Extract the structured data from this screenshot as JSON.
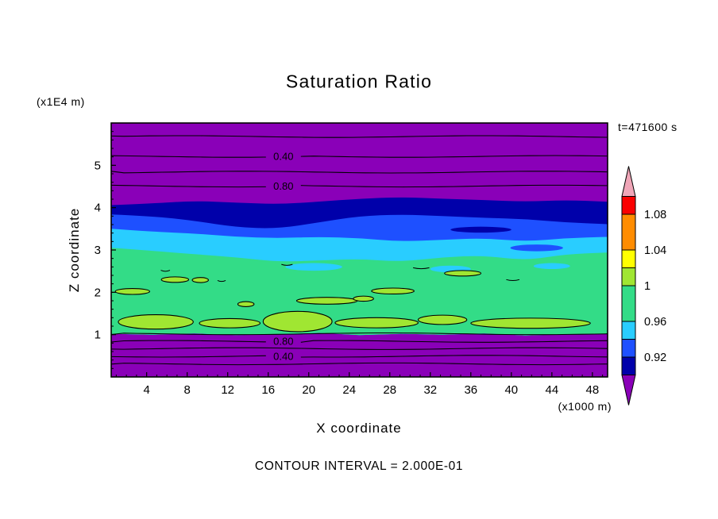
{
  "chart_data": {
    "type": "heatmap",
    "variant": "filled_contour",
    "title": "Saturation Ratio",
    "time_label": "t=471600 s",
    "xlabel": "X coordinate",
    "ylabel": "Z coordinate",
    "x_units_label": "(x1000 m)",
    "z_units_label": "(x1E4 m)",
    "contour_interval_text": "CONTOUR INTERVAL = 2.000E-01",
    "contour_interval": 0.2,
    "x_range": [
      0.5,
      49.5
    ],
    "z_range": [
      0,
      6
    ],
    "x_ticks": [
      4,
      8,
      12,
      16,
      20,
      24,
      28,
      32,
      36,
      40,
      44,
      48
    ],
    "z_ticks": [
      1,
      2,
      3,
      4,
      5
    ],
    "background_color": "#8A00B8",
    "patch_color": "#A0E632",
    "contour_label_x": 17.5,
    "sample_x": [
      0.5,
      4.6,
      8.7,
      12.8,
      16.9,
      21.0,
      25.0,
      29.1,
      33.2,
      37.3,
      41.4,
      45.4,
      49.5
    ],
    "bottom_z": [
      1.02,
      1.0,
      1.03,
      0.99,
      1.01,
      1.04,
      0.99,
      1.02,
      1.0,
      1.03,
      0.98,
      1.01,
      1.02
    ],
    "fill_bands": [
      {
        "name": "navy",
        "value_min": 0.9,
        "color": "#0000AA",
        "top_z": [
          4.06,
          4.1,
          4.16,
          4.12,
          4.08,
          4.14,
          4.21,
          4.25,
          4.21,
          4.18,
          4.14,
          4.18,
          4.14
        ]
      },
      {
        "name": "blue",
        "value_min": 0.92,
        "color": "#1E50FF",
        "top_z": [
          3.84,
          3.8,
          3.69,
          3.54,
          3.5,
          3.65,
          3.8,
          3.84,
          3.8,
          3.76,
          3.73,
          3.65,
          3.61
        ]
      },
      {
        "name": "cyan",
        "value_min": 0.94,
        "color": "#29CDFF",
        "top_z": [
          3.5,
          3.43,
          3.39,
          3.31,
          3.28,
          3.31,
          3.28,
          3.2,
          3.24,
          3.28,
          3.2,
          3.28,
          3.31
        ]
      },
      {
        "name": "green",
        "value_min": 0.96,
        "color": "#33DC87",
        "top_z": [
          3.05,
          2.98,
          2.9,
          2.83,
          2.72,
          2.75,
          2.79,
          2.72,
          2.83,
          2.87,
          2.75,
          2.9,
          2.94
        ]
      }
    ],
    "inner_blobs": [
      {
        "color": "#0000AA",
        "cx": 37.0,
        "cz": 3.48,
        "rx": 3.0,
        "rz": 0.07
      },
      {
        "color": "#1E50FF",
        "cx": 42.5,
        "cz": 3.05,
        "rx": 2.6,
        "rz": 0.08
      },
      {
        "color": "#29CDFF",
        "cx": 20.5,
        "cz": 2.6,
        "rx": 2.8,
        "rz": 0.09
      },
      {
        "color": "#29CDFF",
        "cx": 34.0,
        "cz": 2.55,
        "rx": 2.0,
        "rz": 0.08
      },
      {
        "color": "#29CDFF",
        "cx": 44.0,
        "cz": 2.62,
        "rx": 1.8,
        "rz": 0.07
      }
    ],
    "supersaturation_patches": [
      {
        "cx": 4.9,
        "cz": 1.3,
        "rx": 3.7,
        "rz": 0.17
      },
      {
        "cx": 12.2,
        "cz": 1.27,
        "rx": 3.0,
        "rz": 0.11
      },
      {
        "cx": 18.9,
        "cz": 1.31,
        "rx": 3.4,
        "rz": 0.24
      },
      {
        "cx": 26.7,
        "cz": 1.28,
        "rx": 4.1,
        "rz": 0.12
      },
      {
        "cx": 33.2,
        "cz": 1.35,
        "rx": 2.4,
        "rz": 0.11
      },
      {
        "cx": 41.9,
        "cz": 1.27,
        "rx": 5.9,
        "rz": 0.12
      },
      {
        "cx": 2.6,
        "cz": 2.02,
        "rx": 1.7,
        "rz": 0.07
      },
      {
        "cx": 6.8,
        "cz": 2.3,
        "rx": 1.35,
        "rz": 0.065
      },
      {
        "cx": 9.3,
        "cz": 2.29,
        "rx": 0.8,
        "rz": 0.06
      },
      {
        "cx": 13.8,
        "cz": 1.72,
        "rx": 0.8,
        "rz": 0.06
      },
      {
        "cx": 21.8,
        "cz": 1.8,
        "rx": 3.0,
        "rz": 0.08
      },
      {
        "cx": 25.4,
        "cz": 1.85,
        "rx": 1.0,
        "rz": 0.06
      },
      {
        "cx": 28.3,
        "cz": 2.03,
        "rx": 2.1,
        "rz": 0.07
      },
      {
        "cx": 35.2,
        "cz": 2.45,
        "rx": 1.8,
        "rz": 0.065
      }
    ],
    "contour_marks": [
      {
        "x1": 5.4,
        "x2": 6.3,
        "z": 2.52
      },
      {
        "x1": 17.3,
        "x2": 18.4,
        "z": 2.66
      },
      {
        "x1": 30.3,
        "x2": 31.9,
        "z": 2.58
      },
      {
        "x1": 39.5,
        "x2": 40.8,
        "z": 2.3
      },
      {
        "x1": 11.0,
        "x2": 11.8,
        "z": 2.28
      }
    ],
    "contour_lines": [
      {
        "value": 0.2,
        "z": 5.68,
        "label": null
      },
      {
        "value": 0.4,
        "z": 5.21,
        "label": "0.40"
      },
      {
        "value": 0.6,
        "z": 4.84,
        "label": null
      },
      {
        "value": 0.8,
        "z": 4.51,
        "label": "0.80"
      },
      {
        "value": 1.0,
        "z": 1.02,
        "label": null
      },
      {
        "value": 0.8,
        "z": 0.84,
        "label": "0.80"
      },
      {
        "value": 0.6,
        "z": 0.67,
        "label": null
      },
      {
        "value": 0.4,
        "z": 0.49,
        "label": "0.40"
      },
      {
        "value": 0.2,
        "z": 0.31,
        "label": null
      }
    ],
    "colorbar": {
      "labels": [
        {
          "text": "1.08",
          "value": 1.08
        },
        {
          "text": "1.04",
          "value": 1.04
        },
        {
          "text": "1",
          "value": 1.0
        },
        {
          "text": "0.96",
          "value": 0.96
        },
        {
          "text": "0.92",
          "value": 0.92
        }
      ],
      "segments": [
        {
          "color": "#F0A6B8",
          "v0": 1.1,
          "arrow": "up"
        },
        {
          "color": "#FA0000",
          "v0": 1.08,
          "v1": 1.1
        },
        {
          "color": "#FF8C00",
          "v0": 1.04,
          "v1": 1.08
        },
        {
          "color": "#FFFF00",
          "v0": 1.02,
          "v1": 1.04
        },
        {
          "color": "#A0E632",
          "v0": 1.0,
          "v1": 1.02
        },
        {
          "color": "#33DC87",
          "v0": 0.96,
          "v1": 1.0
        },
        {
          "color": "#29CDFF",
          "v0": 0.94,
          "v1": 0.96
        },
        {
          "color": "#1E50FF",
          "v0": 0.92,
          "v1": 0.94
        },
        {
          "color": "#0000AA",
          "v0": 0.9,
          "v1": 0.92
        },
        {
          "color": "#8A00B8",
          "v1": 0.9,
          "arrow": "down"
        }
      ]
    }
  }
}
